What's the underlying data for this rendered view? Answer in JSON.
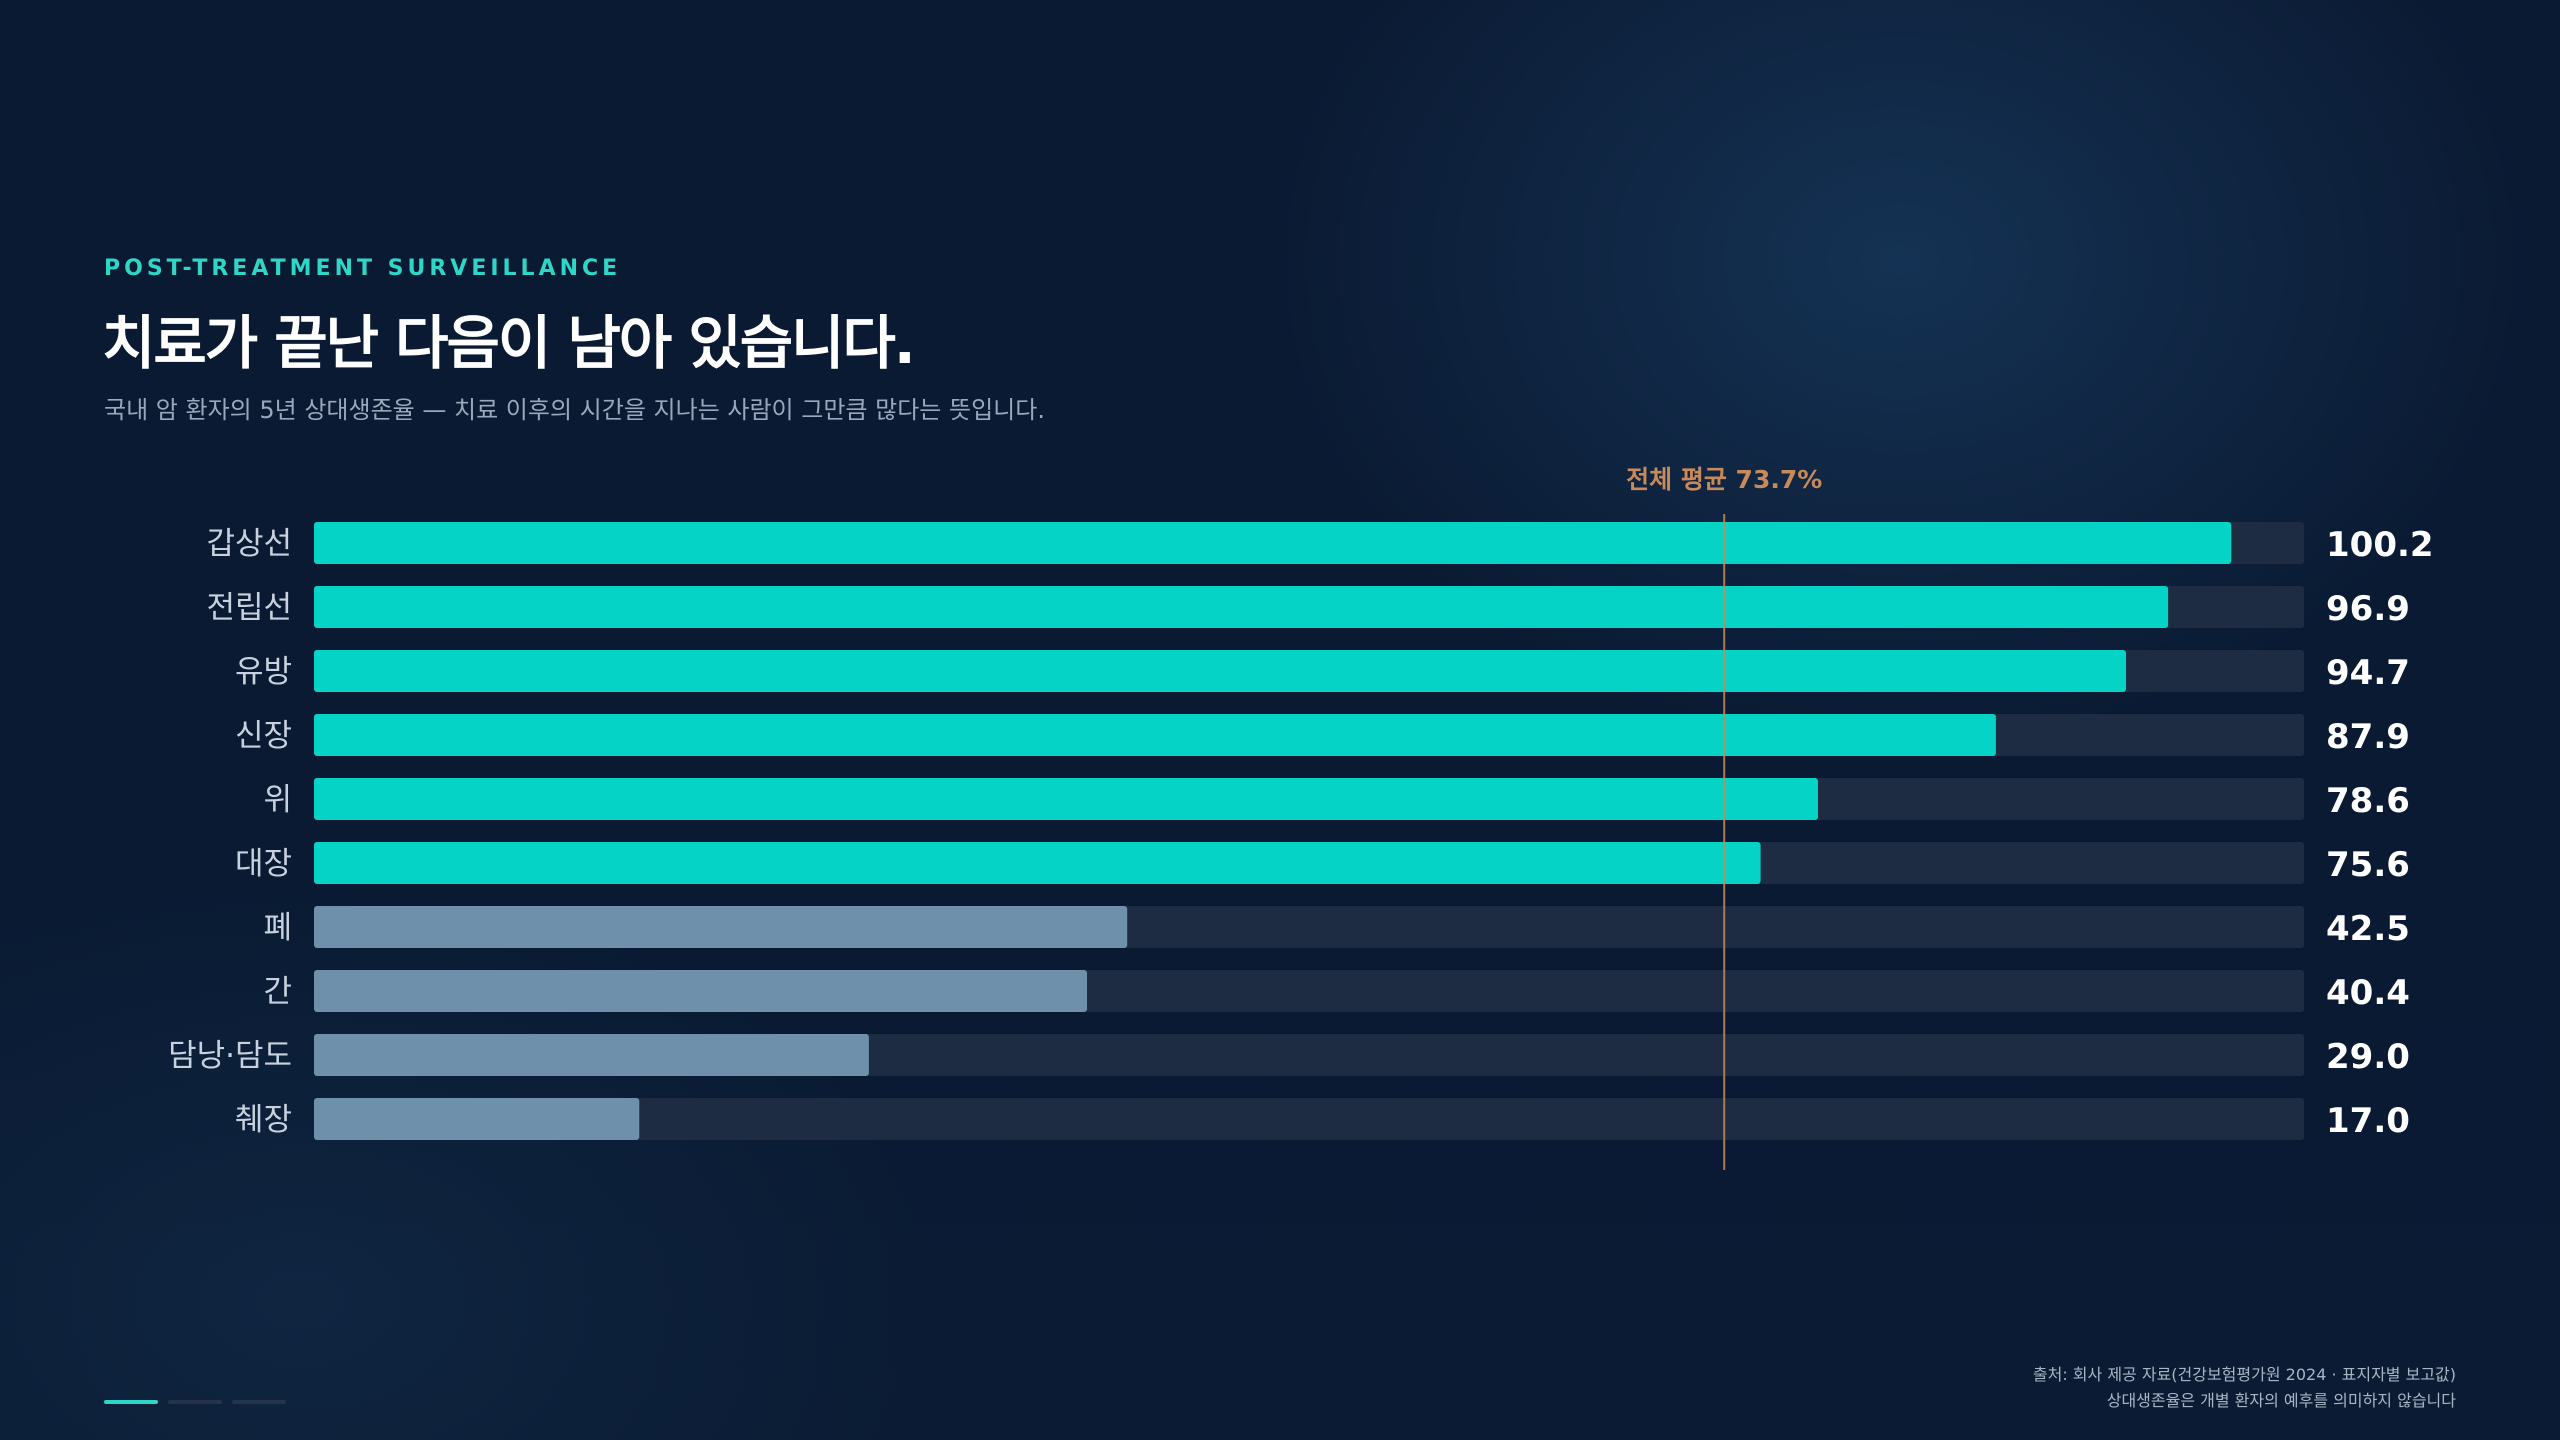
{
  "header": {
    "eyebrow": "POST-TREATMENT SURVEILLANCE",
    "title": "치료가 끝난 다음이 남아 있습니다.",
    "subtitle": "국내 암 환자의 5년 상대생존율 — 치료 이후의 시간을 지나는 사람이 그만큼 많다는 뜻입니다."
  },
  "chart_data": {
    "type": "bar",
    "orientation": "horizontal",
    "categories": [
      "갑상선",
      "전립선",
      "유방",
      "신장",
      "위",
      "대장",
      "폐",
      "간",
      "담낭·담도",
      "췌장"
    ],
    "values": [
      100.2,
      96.9,
      94.7,
      87.9,
      78.6,
      75.6,
      42.5,
      40.4,
      29.0,
      17.0
    ],
    "value_labels": [
      "100.2",
      "96.9",
      "94.7",
      "87.9",
      "78.6",
      "75.6",
      "42.5",
      "40.4",
      "29.0",
      "17.0"
    ],
    "xlim": [
      0,
      104
    ],
    "reference_line": {
      "value": 73.7,
      "label": "전체 평균 73.7%",
      "color": "#c98a5a"
    },
    "colors": {
      "above_average": "#05d3c5",
      "below_average": "#6e90aa",
      "track": "#1d2b43"
    }
  },
  "footer": {
    "source": "출처: 회사 제공 자료(건강보험평가원 2024 · 표지자별 보고값)",
    "note": "상대생존율은 개별 환자의 예후를 의미하지 않습니다"
  },
  "pager": {
    "count": 3,
    "active": 0
  }
}
